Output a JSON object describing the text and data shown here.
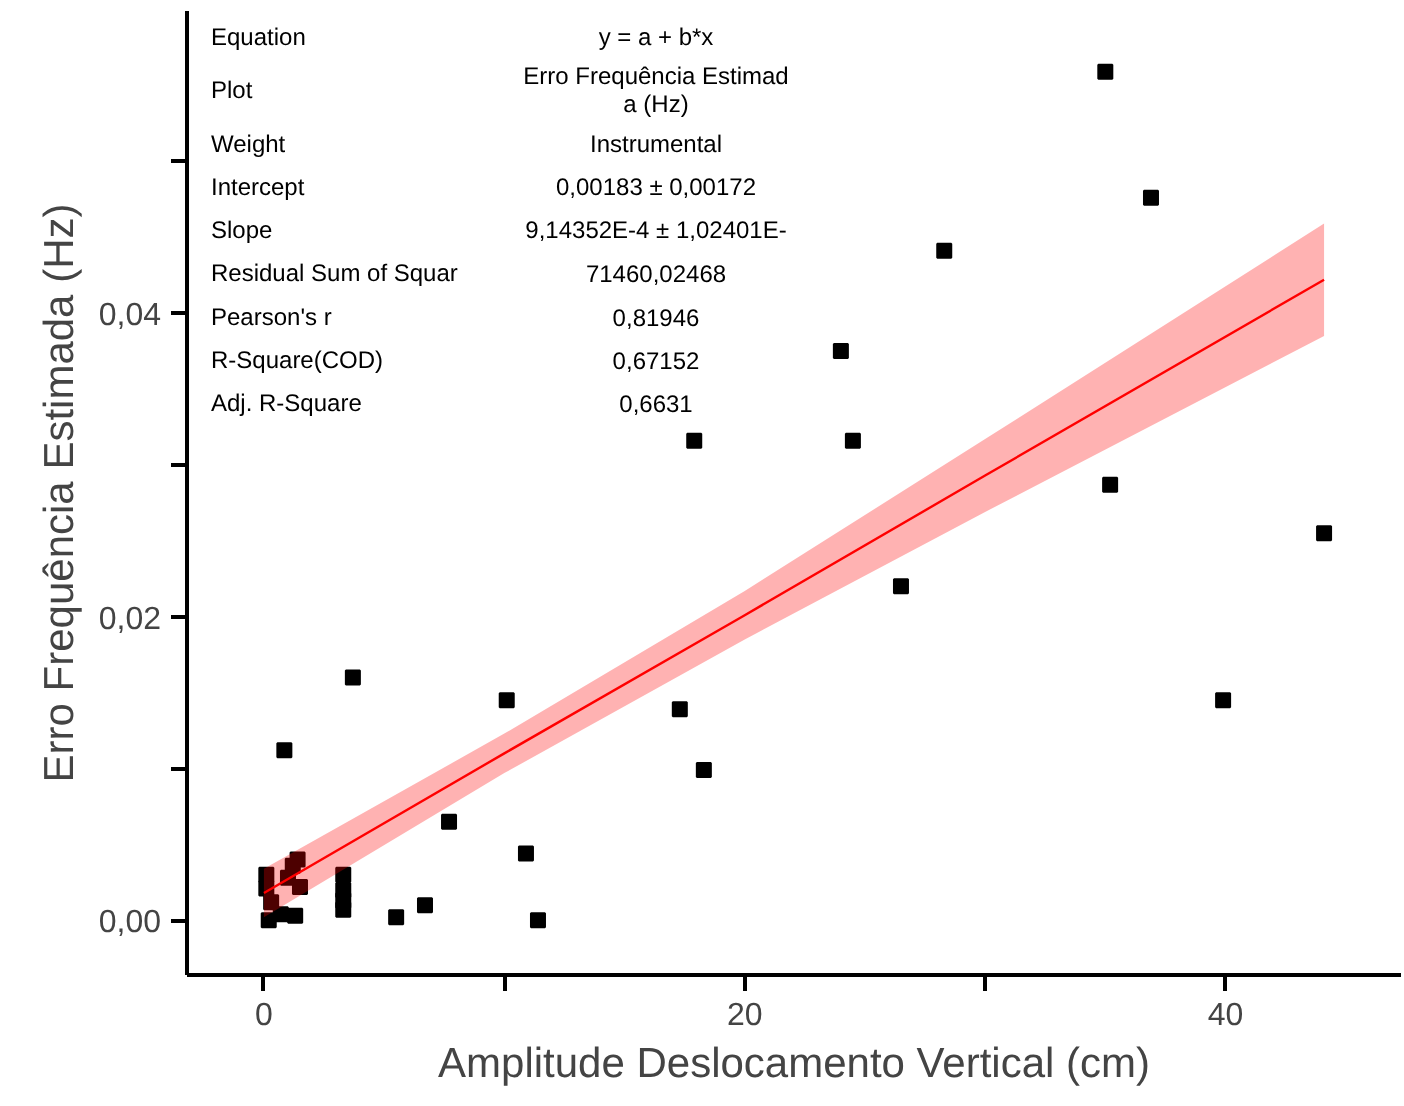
{
  "chart_data": {
    "type": "scatter",
    "xlabel": "Amplitude Deslocamento Vertical (cm)",
    "ylabel": "Erro Frequência Estimada (Hz)",
    "xlim": [
      -3.2,
      47.3
    ],
    "ylim": [
      -0.0036,
      0.0599
    ],
    "xticks": [
      0,
      {
        "value": 10,
        "label": null
      },
      20,
      {
        "value": 30,
        "label": null
      },
      40
    ],
    "yticks": [
      {
        "value": 0,
        "label": "0,00"
      },
      {
        "value": 0.01,
        "label": null
      },
      {
        "value": 0.02,
        "label": "0,02"
      },
      {
        "value": 0.03,
        "label": null
      },
      {
        "value": 0.04,
        "label": "0,04"
      },
      {
        "value": 0.05,
        "label": null
      }
    ],
    "grid": false,
    "series": [
      {
        "type": "scatter",
        "marker": "square",
        "color": "#000000",
        "x": [
          35.0,
          36.9,
          28.3,
          24.0,
          17.9,
          24.5,
          35.2,
          44.1,
          26.5,
          39.9,
          17.3,
          18.3,
          3.7,
          10.1,
          0.85,
          7.7,
          10.9,
          11.4,
          5.5,
          6.7,
          3.3,
          3.3,
          3.3,
          3.3,
          0.1,
          0.1,
          0.2,
          1.2,
          1.4,
          1.5,
          1.3,
          0.7,
          0.3,
          1.0
        ],
        "values": [
          0.0559,
          0.0476,
          0.0441,
          0.0375,
          0.0316,
          0.0316,
          0.0287,
          0.0255,
          0.022,
          0.0145,
          0.0139,
          0.0099,
          0.016,
          0.0145,
          0.0112,
          0.0065,
          0.0044,
          0.0,
          0.0002,
          0.001,
          0.003,
          0.002,
          0.0013,
          0.0007,
          0.003,
          0.0021,
          0.0,
          0.0036,
          0.004,
          0.0022,
          0.0003,
          0.0004,
          0.0012,
          0.0028
        ]
      },
      {
        "type": "line",
        "marker": "none",
        "color": "#ff0000",
        "x": [
          0,
          10,
          20,
          30,
          44.1
        ],
        "values": [
          0.0018,
          0.011,
          0.0201,
          0.0293,
          0.0422
        ],
        "lower": [
          0.0002,
          0.0097,
          0.0185,
          0.0269,
          0.0385
        ],
        "upper": [
          0.0034,
          0.0123,
          0.0217,
          0.0317,
          0.0459
        ]
      }
    ],
    "annotations": [
      "Equation",
      "y = a + b*x",
      "Plot",
      "Erro Frequência Estimad\na (Hz)",
      "Weight",
      "Instrumental",
      "Intercept",
      "0,00183 ± 0,00172",
      "Slope",
      "9,14352E-4 ± 1,02401E-",
      "Residual Sum of Squar",
      "71460,02468",
      "Pearson's r",
      "0,81946",
      "R-Square(COD)",
      "0,67152",
      "Adj. R-Square",
      "0,6631"
    ]
  }
}
